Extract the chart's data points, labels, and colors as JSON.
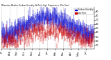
{
  "title": "Milwaukee Weather Outdoor Humidity  At Daily High  Temperature  (Past Year)",
  "background_color": "#ffffff",
  "plot_bg_color": "#ffffff",
  "bar_color_blue": "#0000cc",
  "bar_color_red": "#cc0000",
  "grid_color": "#aaaaaa",
  "ylim": [
    0,
    100
  ],
  "ytick_vals": [
    10,
    20,
    30,
    40,
    50,
    60,
    70,
    80,
    90
  ],
  "n_days": 365,
  "seed": 42,
  "month_positions": [
    0,
    31,
    59,
    90,
    120,
    151,
    181,
    212,
    243,
    273,
    304,
    334
  ],
  "month_labels": [
    "Jul",
    "Aug",
    "Sep",
    "Oct",
    "Nov",
    "Dec",
    "Jan",
    "Feb",
    "Mar",
    "Apr",
    "May",
    "Jun"
  ],
  "legend_blue": "Outdoor Humidity",
  "legend_red": "Dew Point",
  "title_fontsize": 2.8,
  "tick_fontsize": 2.5
}
